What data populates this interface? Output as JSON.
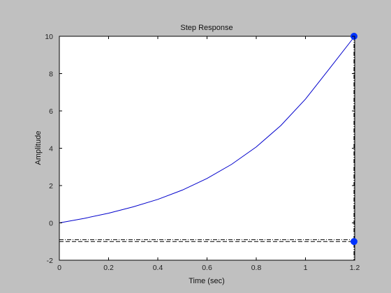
{
  "chart_data": {
    "type": "line",
    "title": "Step Response",
    "xlabel": "Time (sec)",
    "ylabel": "Amplitude",
    "xlim": [
      0,
      1.2
    ],
    "ylim": [
      -2,
      10
    ],
    "xticks": [
      0,
      0.2,
      0.4,
      0.6,
      0.8,
      1,
      1.2
    ],
    "yticks": [
      -2,
      0,
      2,
      4,
      6,
      8,
      10
    ],
    "xtick_labels": [
      "0",
      "0.2",
      "0.4",
      "0.6",
      "0.8",
      "1",
      "1.2"
    ],
    "ytick_labels": [
      "-2",
      "0",
      "2",
      "4",
      "6",
      "8",
      "10"
    ],
    "grid": false,
    "series": [
      {
        "color": "#0000cc",
        "x": [
          0,
          0.1,
          0.2,
          0.3,
          0.4,
          0.5,
          0.6,
          0.7,
          0.8,
          0.9,
          1.0,
          1.1,
          1.2
        ],
        "y": [
          0,
          0.24,
          0.52,
          0.86,
          1.26,
          1.76,
          2.38,
          3.14,
          4.07,
          5.22,
          6.63,
          8.31,
          10
        ]
      }
    ],
    "reference_lines": [
      {
        "y": -0.9,
        "style": "dash-dot"
      },
      {
        "y": -1.0,
        "style": "dashed"
      }
    ],
    "markers": [
      {
        "x": 1.2,
        "y": 10
      },
      {
        "x": 1.2,
        "y": -1.0
      }
    ],
    "marker_color": "#0033ff"
  }
}
